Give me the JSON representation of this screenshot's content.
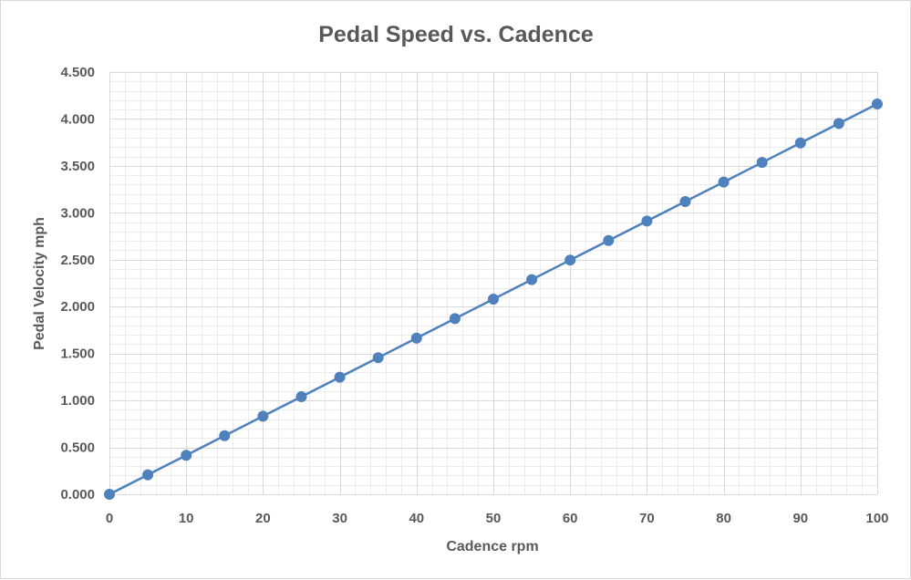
{
  "chart_data": {
    "type": "line",
    "title": "Pedal Speed vs. Cadence",
    "xlabel": "Cadence rpm",
    "ylabel": "Pedal Velocity mph",
    "xlim": [
      0,
      100
    ],
    "ylim": [
      0,
      4.5
    ],
    "x_ticks": [
      "0",
      "10",
      "20",
      "30",
      "40",
      "50",
      "60",
      "70",
      "80",
      "90",
      "100"
    ],
    "y_ticks": [
      "0.000",
      "0.500",
      "1.000",
      "1.500",
      "2.000",
      "2.500",
      "3.000",
      "3.500",
      "4.000",
      "4.500"
    ],
    "grid": true,
    "minor_grid": true,
    "legend": "none",
    "series": [
      {
        "color": "#4f81bd",
        "marker": "circle",
        "x": [
          0,
          5,
          10,
          15,
          20,
          25,
          30,
          35,
          40,
          45,
          50,
          55,
          60,
          65,
          70,
          75,
          80,
          85,
          90,
          95,
          100
        ],
        "y": [
          0.0,
          0.208,
          0.416,
          0.624,
          0.832,
          1.04,
          1.248,
          1.456,
          1.664,
          1.872,
          2.08,
          2.288,
          2.496,
          2.704,
          2.912,
          3.12,
          3.328,
          3.536,
          3.744,
          3.952,
          4.16
        ]
      }
    ]
  }
}
